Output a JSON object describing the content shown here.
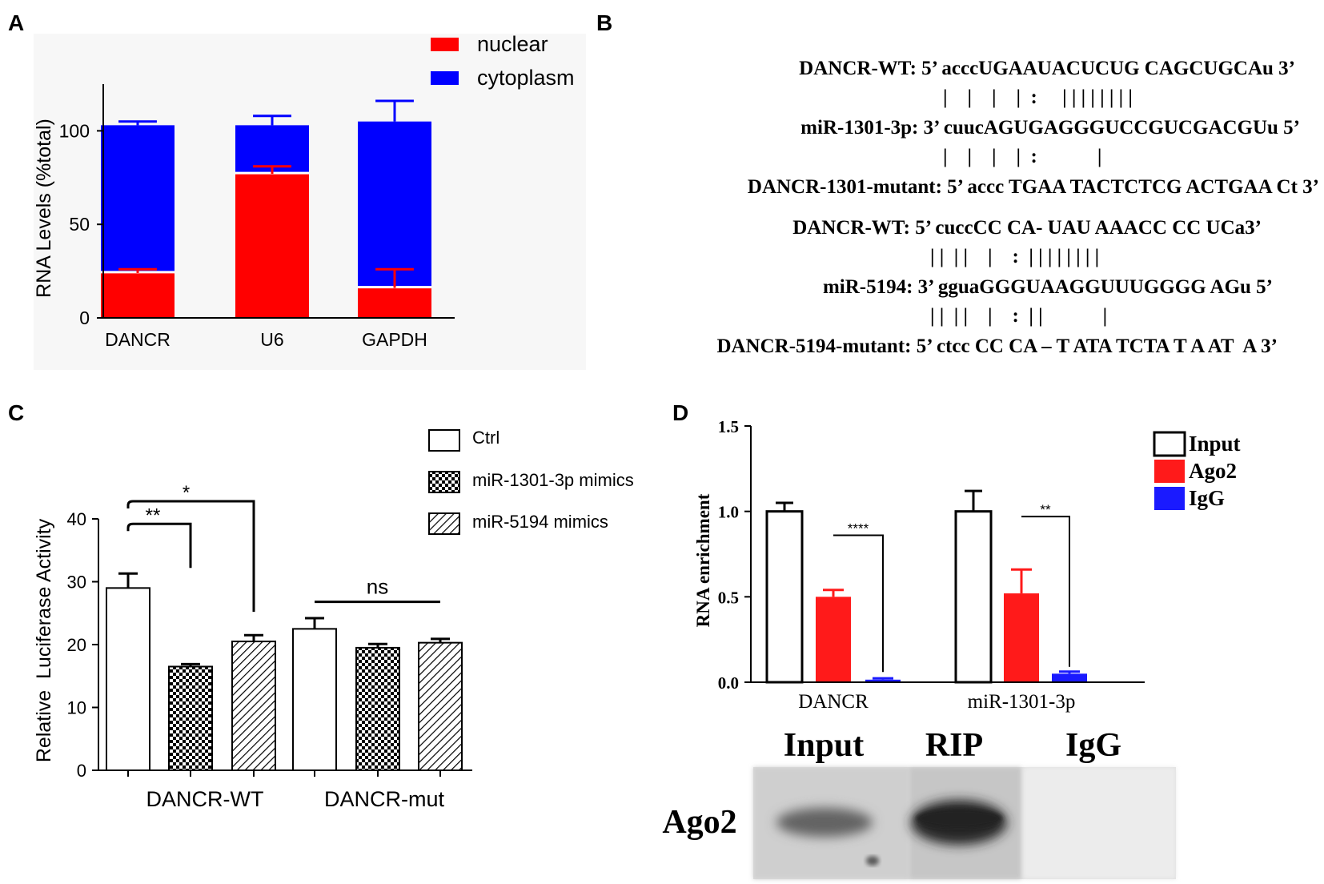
{
  "colors": {
    "nuclear": "#ff0000",
    "cytoplasm": "#0000ff",
    "ago2": "#ff1a1a",
    "igg": "#1a1aff",
    "axis": "#000000"
  },
  "panels": {
    "A": "A",
    "B": "B",
    "C": "C",
    "D": "D"
  },
  "chart_data": [
    {
      "panel": "A",
      "type": "bar",
      "stacked": true,
      "categories": [
        "DANCR",
        "U6",
        "GAPDH"
      ],
      "series": [
        {
          "name": "nuclear",
          "color": "#ff0000",
          "values": [
            24,
            77,
            16
          ],
          "errors": [
            2,
            4,
            10
          ]
        },
        {
          "name": "cytoplasm",
          "color": "#0000ff",
          "values": [
            79,
            26,
            89
          ],
          "errors": [
            2,
            5,
            11
          ]
        }
      ],
      "ylabel": "RNA Levels (%total)",
      "ylim": [
        0,
        125
      ],
      "yticks": [
        0,
        50,
        100
      ],
      "legend": "top-right"
    },
    {
      "panel": "C",
      "type": "bar",
      "groups": [
        "DANCR-WT",
        "DANCR-mut"
      ],
      "series": [
        {
          "name": "Ctrl",
          "pattern": "open",
          "values": [
            29,
            22.5
          ],
          "errors": [
            2.3,
            1.7
          ]
        },
        {
          "name": "miR-1301-3p mimics",
          "pattern": "checker",
          "values": [
            16.5,
            19.5
          ],
          "errors": [
            0.4,
            0.6
          ]
        },
        {
          "name": "miR-5194 mimics",
          "pattern": "hatch",
          "values": [
            20.5,
            20.3
          ],
          "errors": [
            1.0,
            0.6
          ]
        }
      ],
      "ylabel": "Relative  Luciferase Activity",
      "ylim": [
        0,
        40
      ],
      "yticks": [
        0,
        10,
        20,
        30,
        40
      ],
      "significance": [
        {
          "label": "**",
          "group": 0,
          "from": 0,
          "to": 1
        },
        {
          "label": "*",
          "group": 0,
          "from": 0,
          "to": 2
        },
        {
          "label": "ns",
          "group": 1,
          "from": 0,
          "to": 2
        }
      ],
      "legend": "top-right"
    },
    {
      "panel": "D",
      "type": "bar",
      "groups": [
        "DANCR",
        "miR-1301-3p"
      ],
      "series": [
        {
          "name": "Input",
          "color": "#ffffff",
          "values": [
            1.0,
            1.0
          ],
          "errors": [
            0.05,
            0.12
          ]
        },
        {
          "name": "Ago2",
          "color": "#ff1a1a",
          "values": [
            0.5,
            0.52
          ],
          "errors": [
            0.04,
            0.14
          ]
        },
        {
          "name": "IgG",
          "color": "#1a1aff",
          "values": [
            0.015,
            0.05
          ],
          "errors": [
            0.008,
            0.012
          ]
        }
      ],
      "ylabel": "RNA enrichment",
      "ylim": [
        0,
        1.5
      ],
      "yticks": [
        "0.0",
        "0.5",
        "1.0",
        "1.5"
      ],
      "significance": [
        {
          "label": "****",
          "group": 0,
          "from": 1,
          "to": 2
        },
        {
          "label": "**",
          "group": 1,
          "from": 1,
          "to": 2
        }
      ],
      "legend": "top-right"
    }
  ],
  "panelB": {
    "blocks": [
      {
        "lines": [
          "DANCR-WT: 5’ acccUGAAUACUCUG CAGCUGCAu 3’",
          "|    |    |    |  :     | | | | | | | |",
          "miR-1301-3p: 3’ cuucAGUGAGGGUCCGUCGACGUu 5’",
          "|    |    |    |  :            |",
          "DANCR-1301-mutant: 5’ accc TGAA TACTCTCG ACTGAA Ct 3’"
        ]
      },
      {
        "lines": [
          "DANCR-WT: 5’ cuccCC CA- UAU AAACC CC UCa3’",
          "| |  | |    |    :  | | | | | | | |",
          "miR-5194: 3’ gguaGGGUAAGGUUUGGGG AGu 5’",
          "| |  | |    |    :  | |            |",
          "DANCR-5194-mutant: 5’ ctcc CC CA – T ATA TCTA T A AT  A 3’"
        ]
      }
    ]
  },
  "blot": {
    "columns": [
      "Input",
      "RIP",
      "IgG"
    ],
    "row_label": "Ago2",
    "band_intensity": [
      0.55,
      1.0,
      0.05
    ]
  }
}
